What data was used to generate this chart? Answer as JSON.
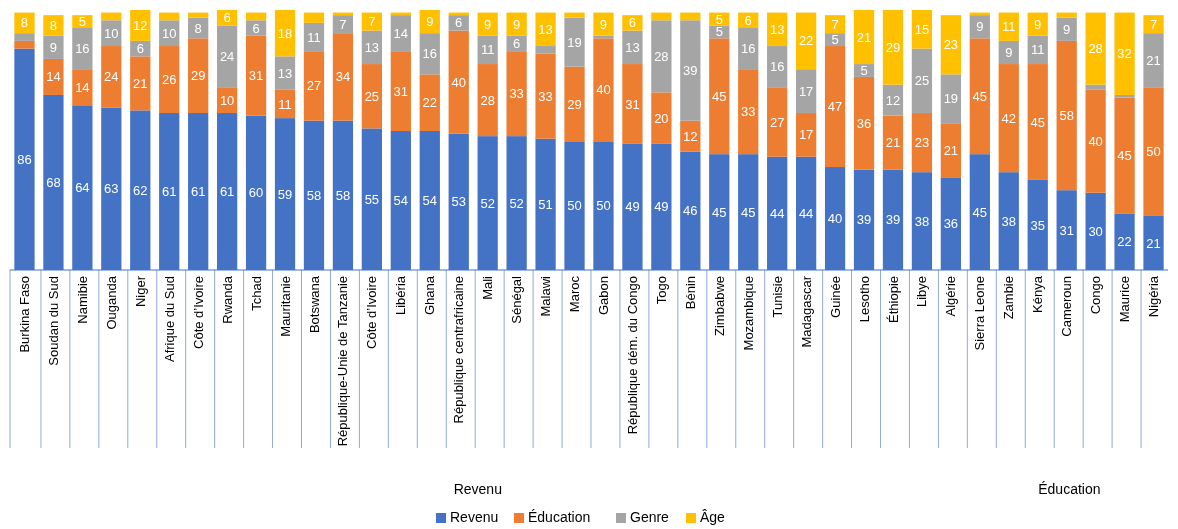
{
  "chart_data": {
    "type": "bar",
    "stacked": true,
    "data_labels": false,
    "legend": "bottom",
    "tick_labels": "x",
    "ylim": [
      0,
      101
    ],
    "categories": [
      "Burkina Faso",
      "Soudan du Sud",
      "Namibie",
      "Ouganda",
      "Niger",
      "Afrique du Sud",
      "Côte d’Ivoire",
      "Rwanda",
      "Tchad",
      "Mauritanie",
      "Botswana",
      "République-Unie de Tanzanie",
      "Côte d’Ivoire",
      "Libéria",
      "Ghana",
      "République centrafricaine",
      "Mali",
      "Sénégal",
      "Malawi",
      "Maroc",
      "Gabon",
      "République dém. du Congo",
      "Togo",
      "Bénin",
      "Zimbabwe",
      "Mozambique",
      "Tunisie",
      "Madagascar",
      "Guinée",
      "Lesotho",
      "Éthiopie",
      "Libye",
      "Algérie",
      "Sierra Leone",
      "Zambie",
      "Kénya",
      "Cameroun",
      "Congo",
      "Maurice",
      "Nigéria"
    ],
    "series": [
      {
        "name": "Revenu",
        "color": "#4472c4",
        "values": [
          86,
          68,
          64,
          63,
          62,
          61,
          61,
          61,
          60,
          59,
          58,
          58,
          55,
          54,
          54,
          53,
          52,
          52,
          51,
          50,
          50,
          49,
          49,
          46,
          45,
          45,
          44,
          44,
          40,
          39,
          39,
          38,
          36,
          45,
          38,
          35,
          31,
          30,
          22,
          21
        ],
        "value_labels": [
          "86",
          "68",
          "64",
          "63",
          "62",
          "61",
          "61",
          "61",
          "60",
          "59",
          "58",
          "58",
          "55",
          "54",
          "54",
          "53",
          "52",
          "52",
          "51",
          "50",
          "50",
          "49",
          "49",
          "46",
          "45",
          "45",
          "44",
          "44",
          "40",
          "39",
          "39",
          "38",
          "36",
          "45",
          "38",
          "35",
          "31",
          "30",
          "22",
          "21"
        ]
      },
      {
        "name": "Éducation",
        "color": "#ed7d31",
        "values": [
          3,
          14,
          14,
          24,
          21,
          26,
          29,
          10,
          31,
          11,
          27,
          34,
          25,
          31,
          22,
          40,
          28,
          33,
          33,
          29,
          40,
          31,
          20,
          12,
          45,
          33,
          27,
          17,
          47,
          36,
          21,
          23,
          21,
          45,
          42,
          45,
          58,
          40,
          45,
          50
        ],
        "value_labels": [
          null,
          "14",
          "14",
          "24",
          "21",
          "26",
          "29",
          "10",
          "31",
          "11",
          "27",
          "34",
          "25",
          "31",
          "22",
          "40",
          "28",
          "33",
          "33",
          "29",
          "40",
          "31",
          "20",
          "12",
          "45",
          "33",
          "27",
          "17",
          "47",
          "36",
          "21",
          "23",
          "21",
          "45",
          "42",
          "45",
          "58",
          "40",
          "45",
          "50"
        ]
      },
      {
        "name": "Genre",
        "color": "#a5a5a5",
        "values": [
          3,
          9,
          16,
          10,
          6,
          10,
          8,
          24,
          6,
          13,
          11,
          7,
          13,
          14,
          16,
          6,
          11,
          6,
          3,
          19,
          1,
          13,
          28,
          39,
          5,
          16,
          16,
          17,
          5,
          5,
          12,
          25,
          19,
          9,
          9,
          11,
          9,
          2,
          1,
          21
        ],
        "value_labels": [
          null,
          "9",
          "16",
          "10",
          "6",
          "10",
          "8",
          "24",
          "6",
          "13",
          "11",
          "7",
          "13",
          "14",
          "16",
          "6",
          "11",
          "6",
          null,
          "19",
          null,
          "13",
          "28",
          "39",
          "5",
          "16",
          "16",
          "17",
          "5",
          "5",
          "12",
          "25",
          "19",
          "9",
          "9",
          "11",
          "9",
          null,
          null,
          "21"
        ]
      },
      {
        "name": "Âge",
        "color": "#ffc000",
        "values": [
          8,
          8,
          5,
          3,
          12,
          3,
          2,
          6,
          3,
          18,
          4,
          1,
          7,
          1,
          9,
          1,
          9,
          9,
          13,
          2,
          9,
          6,
          3,
          3,
          5,
          6,
          13,
          22,
          7,
          21,
          29,
          15,
          23,
          1,
          11,
          9,
          2,
          28,
          32,
          7
        ],
        "value_labels": [
          "8",
          "8",
          "5",
          null,
          "12",
          null,
          null,
          "6",
          null,
          "18",
          null,
          null,
          "7",
          null,
          "9",
          null,
          "9",
          "9",
          "13",
          null,
          "9",
          "6",
          null,
          null,
          "5",
          "6",
          "13",
          "22",
          "7",
          "21",
          "29",
          "15",
          "23",
          null,
          "11",
          "9",
          null,
          "28",
          "32",
          "7"
        ]
      }
    ],
    "annotations": [
      "Revenu",
      "Éducation"
    ]
  }
}
